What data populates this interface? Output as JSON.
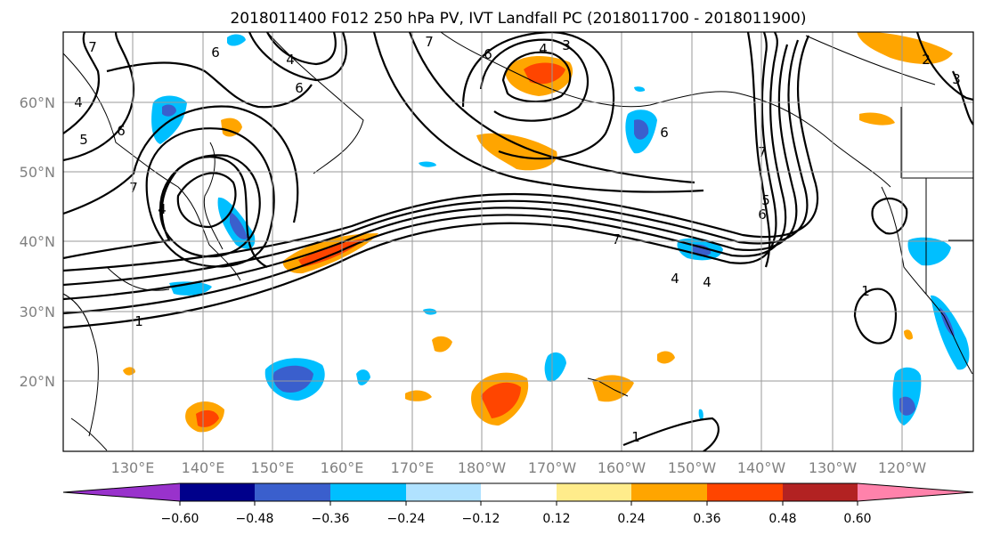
{
  "title": "2018011400 F012 250 hPa PV, IVT Landfall PC (2018011700 - 2018011900)",
  "lat_labels": [
    "60°N",
    "50°N",
    "40°N",
    "30°N",
    "20°N"
  ],
  "lon_labels": [
    "130°E",
    "140°E",
    "150°E",
    "160°E",
    "170°E",
    "180°W",
    "170°W",
    "160°W",
    "150°W",
    "140°W",
    "130°W",
    "120°W"
  ],
  "contour_labels": [
    "7",
    "6",
    "5",
    "4",
    "3",
    "2",
    "1"
  ],
  "colorbar": {
    "colors": [
      "#9932cc",
      "#00008b",
      "#3a5fcd",
      "#00bfff",
      "#b0e2ff",
      "#ffffff",
      "#ffec8b",
      "#ffa500",
      "#ff4500",
      "#b22222",
      "#ff82ab"
    ],
    "tick_labels": [
      "−0.60",
      "−0.48",
      "−0.36",
      "−0.24",
      "−0.12",
      "0.12",
      "0.24",
      "0.36",
      "0.48",
      "0.60"
    ]
  }
}
